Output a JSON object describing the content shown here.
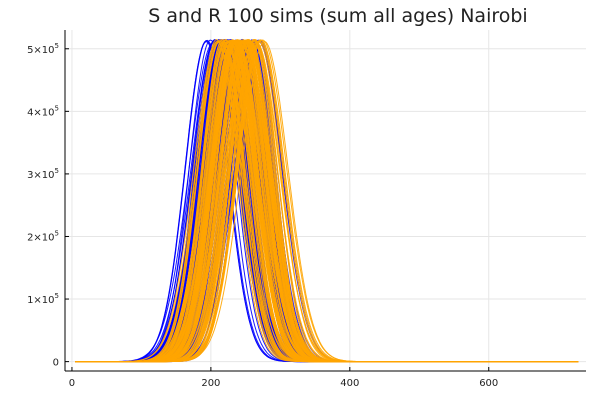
{
  "chart_data": {
    "type": "line",
    "title": "S and R 100 sims (sum all ages) Nairobi",
    "xlabel": "",
    "ylabel": "",
    "xlim": [
      -10,
      740
    ],
    "ylim": [
      -15000,
      530000
    ],
    "grid": true,
    "legend": "none",
    "x_ticks": [
      0,
      200,
      400,
      600
    ],
    "x_tick_labels": [
      "0",
      "200",
      "400",
      "600"
    ],
    "y_ticks": [
      0,
      100000,
      200000,
      300000,
      400000,
      500000
    ],
    "y_tick_labels": [
      {
        "mantissa": "0",
        "exp": ""
      },
      {
        "mantissa": "1×10",
        "exp": "5"
      },
      {
        "mantissa": "2×10",
        "exp": "5"
      },
      {
        "mantissa": "3×10",
        "exp": "5"
      },
      {
        "mantissa": "4×10",
        "exp": "5"
      },
      {
        "mantissa": "5×10",
        "exp": "5"
      }
    ],
    "x_range": [
      5,
      730
    ],
    "series_groups": [
      {
        "color": "#0000ff",
        "curve": "pulse",
        "peak": 515000,
        "width_days": 32,
        "count": 100,
        "peak_day_min": 190,
        "peak_day_max": 275,
        "peak_day_mode": 215
      },
      {
        "color": "#ffa500",
        "curve": "pulse",
        "peak": 515000,
        "width_days": 32,
        "count": 100,
        "peak_day_min": 205,
        "peak_day_max": 280,
        "peak_day_mode": 235
      }
    ]
  }
}
